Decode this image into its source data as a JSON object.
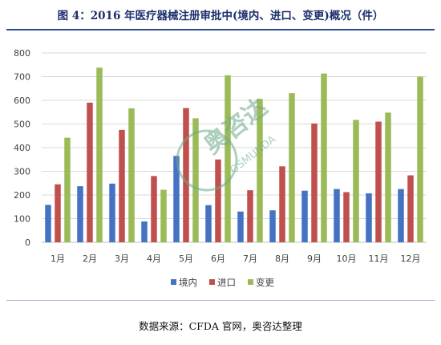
{
  "title": "图 4：2016 年医疗器械注册审批中(境内、进口、变更)概况（件）",
  "source": "数据来源：CFDA 官网，奥咨达整理",
  "watermark": {
    "text": "奥咨达",
    "subtext": "OSMUNDA",
    "color": "#6fa98a"
  },
  "chart_data": {
    "type": "bar",
    "title": "",
    "xlabel": "",
    "ylabel": "",
    "ylim": [
      0,
      800
    ],
    "yticks": [
      0,
      100,
      200,
      300,
      400,
      500,
      600,
      700,
      800
    ],
    "grid": true,
    "legend_position": "bottom",
    "categories": [
      "1月",
      "2月",
      "3月",
      "4月",
      "5月",
      "6月",
      "7月",
      "8月",
      "9月",
      "10月",
      "11月",
      "12月"
    ],
    "series": [
      {
        "name": "境内",
        "color": "#4472c4",
        "values": [
          158,
          237,
          248,
          88,
          365,
          157,
          130,
          135,
          218,
          225,
          207,
          225
        ]
      },
      {
        "name": "进口",
        "color": "#c0504d",
        "values": [
          245,
          590,
          475,
          280,
          567,
          350,
          220,
          321,
          502,
          212,
          510,
          283
        ]
      },
      {
        "name": "变更",
        "color": "#9bbb59",
        "values": [
          442,
          738,
          566,
          222,
          524,
          706,
          606,
          630,
          713,
          517,
          548,
          700
        ]
      }
    ]
  }
}
